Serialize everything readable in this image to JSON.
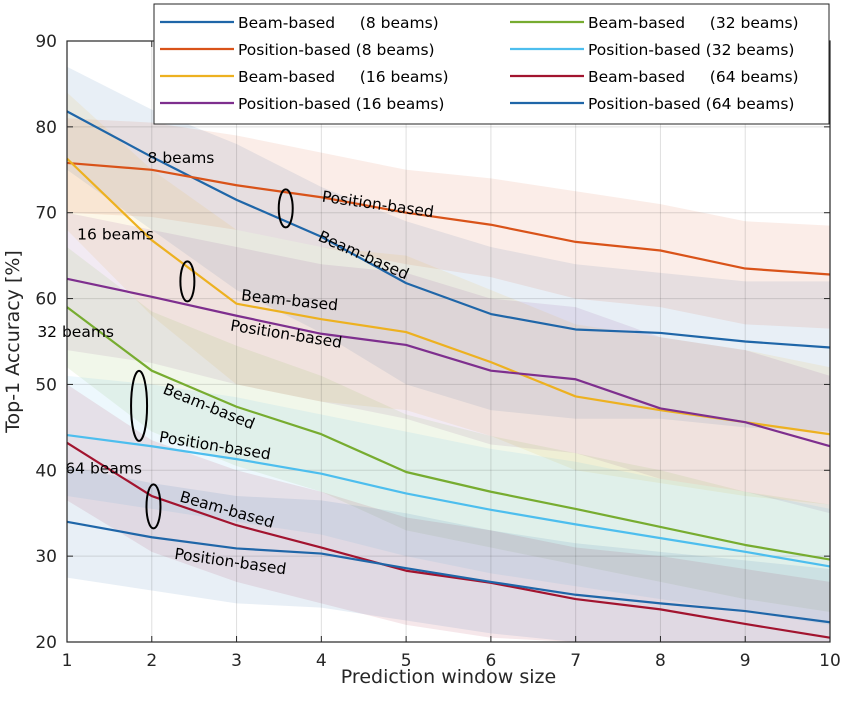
{
  "chart_data": {
    "type": "line",
    "xlabel": "Prediction window size",
    "ylabel": "Top-1 Accuracy [%]",
    "xlim": [
      1,
      10
    ],
    "ylim": [
      20,
      90
    ],
    "x": [
      1,
      2,
      3,
      4,
      5,
      6,
      7,
      8,
      9,
      10
    ],
    "x_ticks": [
      "1",
      "2",
      "3",
      "4",
      "5",
      "6",
      "7",
      "8",
      "9",
      "10"
    ],
    "y_ticks": [
      "20",
      "30",
      "40",
      "50",
      "60",
      "70",
      "80",
      "90"
    ],
    "grid": true,
    "legend_position": "top-right",
    "series": [
      {
        "name": "Beam-based     (8 beams)",
        "color": "#1f66a8",
        "values": [
          81.8,
          76.5,
          71.5,
          67.2,
          61.8,
          58.2,
          56.4,
          56.0,
          55.0,
          54.3
        ],
        "band": [
          [
            75.0,
            87.0
          ],
          [
            68.0,
            82.0
          ],
          [
            61.0,
            78.0
          ],
          [
            56.0,
            73.0
          ],
          [
            50.0,
            69.0
          ],
          [
            47.0,
            66.0
          ],
          [
            46.0,
            64.0
          ],
          [
            46.0,
            63.0
          ],
          [
            45.0,
            62.0
          ],
          [
            44.5,
            62.0
          ]
        ]
      },
      {
        "name": "Position-based (8 beams)",
        "color": "#d95319",
        "values": [
          75.8,
          75.0,
          73.2,
          71.8,
          70.0,
          68.6,
          66.6,
          65.6,
          63.5,
          62.8
        ],
        "band": [
          [
            70.0,
            81.0
          ],
          [
            69.5,
            80.5
          ],
          [
            68.0,
            79.0
          ],
          [
            66.0,
            77.0
          ],
          [
            64.0,
            75.0
          ],
          [
            62.5,
            74.0
          ],
          [
            60.0,
            72.5
          ],
          [
            59.0,
            71.0
          ],
          [
            57.0,
            69.0
          ],
          [
            56.5,
            68.5
          ]
        ]
      },
      {
        "name": "Beam-based     (16 beams)",
        "color": "#edb120",
        "values": [
          76.3,
          66.8,
          59.4,
          57.6,
          56.1,
          52.6,
          48.6,
          47.0,
          45.6,
          44.2
        ],
        "band": [
          [
            68.0,
            84.0
          ],
          [
            58.0,
            75.0
          ],
          [
            50.0,
            68.0
          ],
          [
            48.0,
            66.0
          ],
          [
            47.0,
            65.0
          ],
          [
            44.0,
            61.0
          ],
          [
            40.0,
            57.0
          ],
          [
            38.5,
            55.5
          ],
          [
            37.0,
            54.0
          ],
          [
            36.0,
            52.0
          ]
        ]
      },
      {
        "name": "Position-based (16 beams)",
        "color": "#7e2f8e",
        "values": [
          62.3,
          60.2,
          58.0,
          55.9,
          54.6,
          51.6,
          50.6,
          47.2,
          45.6,
          42.8
        ],
        "band": [
          [
            54.0,
            70.0
          ],
          [
            52.5,
            68.0
          ],
          [
            50.0,
            66.0
          ],
          [
            48.0,
            64.0
          ],
          [
            46.0,
            63.0
          ],
          [
            43.0,
            60.0
          ],
          [
            42.0,
            59.0
          ],
          [
            39.0,
            55.5
          ],
          [
            37.5,
            54.0
          ],
          [
            35.0,
            51.0
          ]
        ]
      },
      {
        "name": "Beam-based     (32 beams)",
        "color": "#77ac30",
        "values": [
          59.0,
          51.6,
          47.4,
          44.2,
          39.8,
          37.5,
          35.5,
          33.4,
          31.3,
          29.6
        ],
        "band": [
          [
            52.0,
            66.0
          ],
          [
            44.5,
            58.5
          ],
          [
            40.5,
            54.5
          ],
          [
            37.5,
            51.0
          ],
          [
            33.0,
            46.5
          ],
          [
            31.0,
            44.0
          ],
          [
            29.0,
            42.0
          ],
          [
            27.0,
            40.0
          ],
          [
            25.0,
            37.5
          ],
          [
            23.5,
            36.0
          ]
        ]
      },
      {
        "name": "Position-based (32 beams)",
        "color": "#4dbeee",
        "values": [
          44.1,
          42.8,
          41.3,
          39.6,
          37.3,
          35.4,
          33.7,
          32.1,
          30.5,
          28.8
        ],
        "band": [
          [
            37.0,
            51.0
          ],
          [
            35.5,
            50.0
          ],
          [
            34.0,
            48.5
          ],
          [
            32.5,
            46.5
          ],
          [
            30.0,
            44.5
          ],
          [
            28.0,
            42.5
          ],
          [
            26.5,
            41.0
          ],
          [
            25.0,
            39.0
          ],
          [
            23.5,
            37.5
          ],
          [
            22.0,
            35.5
          ]
        ]
      },
      {
        "name": "Beam-based     (64 beams)",
        "color": "#a2142f",
        "values": [
          43.2,
          37.0,
          33.6,
          31.0,
          28.3,
          26.9,
          25.0,
          23.8,
          22.1,
          20.5
        ],
        "band": [
          [
            36.5,
            50.0
          ],
          [
            30.5,
            43.5
          ],
          [
            27.0,
            40.0
          ],
          [
            24.5,
            37.5
          ],
          [
            22.0,
            34.5
          ],
          [
            20.5,
            33.0
          ],
          [
            20.0,
            31.0
          ],
          [
            20.0,
            30.0
          ],
          [
            20.0,
            28.5
          ],
          [
            20.0,
            27.0
          ]
        ]
      },
      {
        "name": "Position-based (64 beams)",
        "color": "#1f66a8",
        "values": [
          34.0,
          32.2,
          30.9,
          30.3,
          28.6,
          27.0,
          25.5,
          24.5,
          23.6,
          22.3
        ],
        "band": [
          [
            27.5,
            40.5
          ],
          [
            26.0,
            38.5
          ],
          [
            24.5,
            37.0
          ],
          [
            24.0,
            36.5
          ],
          [
            22.5,
            35.0
          ],
          [
            21.0,
            33.0
          ],
          [
            20.0,
            31.5
          ],
          [
            20.0,
            30.5
          ],
          [
            20.0,
            29.5
          ],
          [
            20.0,
            28.5
          ]
        ]
      }
    ],
    "annotations": [
      {
        "text": "8 beams",
        "x": 1.95,
        "y": 75.8,
        "rotate": 0
      },
      {
        "text": "Position-based",
        "x": 4.0,
        "y": 71.3,
        "rotate": 8
      },
      {
        "text": "Beam-based",
        "x": 3.95,
        "y": 66.8,
        "rotate": 24
      },
      {
        "text": "16 beams",
        "x": 1.12,
        "y": 66.9,
        "rotate": 0
      },
      {
        "text": "Beam-based",
        "x": 3.05,
        "y": 59.8,
        "rotate": 6
      },
      {
        "text": "Position-based",
        "x": 2.92,
        "y": 56.3,
        "rotate": 9
      },
      {
        "text": "32 beams",
        "x": 0.65,
        "y": 55.5,
        "rotate": 0
      },
      {
        "text": "Beam-based",
        "x": 2.12,
        "y": 49.0,
        "rotate": 22
      },
      {
        "text": "Position-based",
        "x": 2.08,
        "y": 43.3,
        "rotate": 9
      },
      {
        "text": "64 beams",
        "x": 0.98,
        "y": 39.6,
        "rotate": 0
      },
      {
        "text": "Beam-based",
        "x": 2.32,
        "y": 36.4,
        "rotate": 16
      },
      {
        "text": "Position-based",
        "x": 2.26,
        "y": 29.7,
        "rotate": 8
      }
    ],
    "ellipses": [
      {
        "x": 3.58,
        "y": 70.5
      },
      {
        "x": 2.42,
        "y": 62.0
      },
      {
        "x": 1.85,
        "y": 47.5
      },
      {
        "x": 2.02,
        "y": 35.8
      }
    ]
  }
}
